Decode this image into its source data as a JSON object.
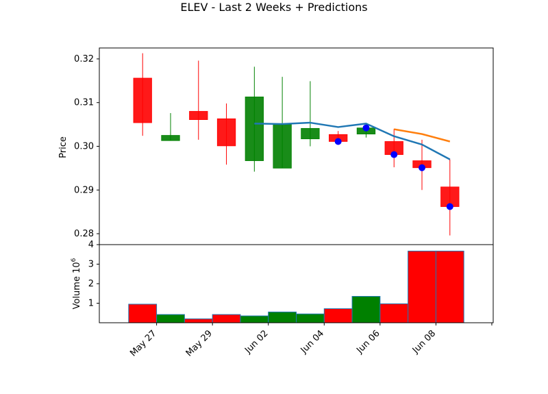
{
  "chart_data": {
    "type": "candlestick",
    "title": "ELEV - Last 2 Weeks + Predictions",
    "price_panel": {
      "ylabel": "Price",
      "ylim": [
        0.2775,
        0.3225
      ],
      "yticks": [
        0.28,
        0.29,
        0.3,
        0.31,
        0.32
      ],
      "ytick_labels": [
        "0.28",
        "0.29",
        "0.30",
        "0.31",
        "0.32"
      ],
      "candles": [
        {
          "x": 0,
          "open": 0.3156,
          "close": 0.3054,
          "high": 0.3213,
          "low": 0.3024
        },
        {
          "x": 1,
          "open": 0.3013,
          "close": 0.3025,
          "high": 0.3076,
          "low": 0.3013
        },
        {
          "x": 2,
          "open": 0.308,
          "close": 0.3061,
          "high": 0.3196,
          "low": 0.3015
        },
        {
          "x": 3,
          "open": 0.3063,
          "close": 0.3001,
          "high": 0.3098,
          "low": 0.2958
        },
        {
          "x": 4,
          "open": 0.2967,
          "close": 0.3113,
          "high": 0.3182,
          "low": 0.2942
        },
        {
          "x": 5,
          "open": 0.295,
          "close": 0.305,
          "high": 0.3159,
          "low": 0.295
        },
        {
          "x": 6,
          "open": 0.3017,
          "close": 0.3041,
          "high": 0.3149,
          "low": 0.3
        },
        {
          "x": 7,
          "open": 0.3027,
          "close": 0.3011,
          "high": 0.3035,
          "low": 0.3008
        },
        {
          "x": 8,
          "open": 0.3028,
          "close": 0.3042,
          "high": 0.305,
          "low": 0.302
        },
        {
          "x": 9,
          "open": 0.3011,
          "close": 0.2981,
          "high": 0.304,
          "low": 0.2952
        },
        {
          "x": 10,
          "open": 0.2967,
          "close": 0.2951,
          "high": 0.3015,
          "low": 0.29
        },
        {
          "x": 11,
          "open": 0.2907,
          "close": 0.2862,
          "high": 0.297,
          "low": 0.2796
        }
      ],
      "blue_line": {
        "x": [
          4,
          5,
          6,
          7,
          8,
          9,
          10,
          11
        ],
        "y": [
          0.3052,
          0.3051,
          0.3054,
          0.3044,
          0.3052,
          0.3023,
          0.3004,
          0.297
        ]
      },
      "orange_line": {
        "x": [
          9,
          10,
          11
        ],
        "y": [
          0.3039,
          0.3028,
          0.3011
        ]
      },
      "blue_points": {
        "x": [
          7,
          8,
          9,
          10,
          11
        ],
        "y": [
          0.3011,
          0.3042,
          0.2981,
          0.2951,
          0.2862
        ]
      }
    },
    "volume_panel": {
      "ylabel": "Volume  10",
      "ylabel_exponent": "6",
      "ylim": [
        0,
        4
      ],
      "yticks": [
        1,
        2,
        3,
        4
      ],
      "ytick_labels": [
        "1",
        "2",
        "3",
        "4"
      ],
      "bars": [
        {
          "x": 0,
          "value": 0.95,
          "color": "red"
        },
        {
          "x": 1,
          "value": 0.42,
          "color": "green"
        },
        {
          "x": 2,
          "value": 0.2,
          "color": "red"
        },
        {
          "x": 3,
          "value": 0.42,
          "color": "red"
        },
        {
          "x": 4,
          "value": 0.35,
          "color": "green"
        },
        {
          "x": 5,
          "value": 0.55,
          "color": "green"
        },
        {
          "x": 6,
          "value": 0.45,
          "color": "green"
        },
        {
          "x": 7,
          "value": 0.72,
          "color": "red"
        },
        {
          "x": 8,
          "value": 1.35,
          "color": "green"
        },
        {
          "x": 9,
          "value": 0.97,
          "color": "red"
        },
        {
          "x": 10,
          "value": 3.67,
          "color": "red"
        },
        {
          "x": 11,
          "value": 3.67,
          "color": "red"
        }
      ]
    },
    "xticks": [
      {
        "x": 0.5,
        "label": "May 27"
      },
      {
        "x": 2.5,
        "label": "May 29"
      },
      {
        "x": 4.5,
        "label": "Jun 02"
      },
      {
        "x": 6.5,
        "label": "Jun 04"
      },
      {
        "x": 8.5,
        "label": "Jun 06"
      },
      {
        "x": 10.5,
        "label": "Jun 08"
      },
      {
        "x": 12.5,
        "label": ""
      }
    ],
    "xlim": [
      -1.55,
      12.55
    ],
    "colors": {
      "up": "#008000",
      "down": "#ff0000",
      "blue_line": "#1f77b4",
      "orange_line": "#ff7f0e",
      "point": "#0000ff"
    }
  }
}
